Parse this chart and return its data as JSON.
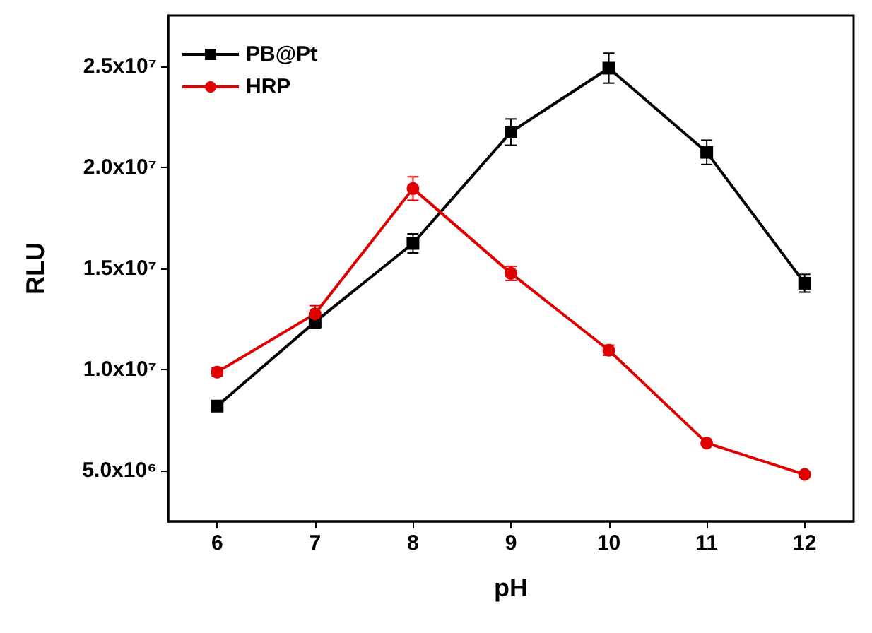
{
  "chart_data": {
    "type": "line",
    "xlabel": "pH",
    "ylabel": "RLU",
    "x": [
      6,
      7,
      8,
      9,
      10,
      11,
      12
    ],
    "series": [
      {
        "name": "PB@Pt",
        "color": "#000000",
        "marker": "square",
        "values": [
          8200000,
          12360000,
          16240000,
          21740000,
          24900000,
          20740000,
          14270000
        ],
        "errors": [
          200000,
          300000,
          470000,
          650000,
          740000,
          600000,
          440000
        ]
      },
      {
        "name": "HRP",
        "color": "#e00000",
        "marker": "circle",
        "values": [
          9880000,
          12760000,
          18950000,
          14760000,
          10960000,
          6370000,
          4820000
        ],
        "errors": [
          200000,
          400000,
          580000,
          350000,
          250000,
          null,
          null
        ]
      }
    ],
    "xlim": [
      5.5,
      12.5
    ],
    "xticks": [
      6,
      7,
      8,
      9,
      10,
      11,
      12
    ],
    "ylim": [
      2500000,
      27500000
    ],
    "yticks": [
      {
        "value": 5000000,
        "label": "5.0x10⁶"
      },
      {
        "value": 10000000,
        "label": "1.0x10⁷"
      },
      {
        "value": 15000000,
        "label": "1.5x10⁷"
      },
      {
        "value": 20000000,
        "label": "2.0x10⁷"
      },
      {
        "value": 25000000,
        "label": "2.5x10⁷"
      }
    ],
    "grid": false,
    "legend": "top left",
    "line_style": "solid"
  }
}
